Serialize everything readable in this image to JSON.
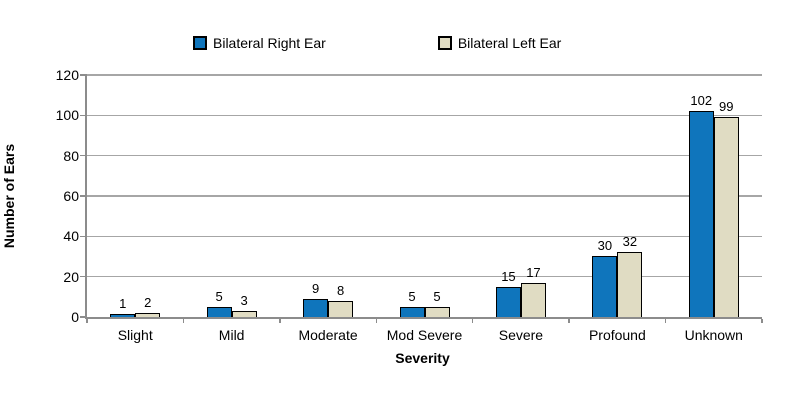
{
  "chart_data": {
    "type": "bar",
    "title": "",
    "categories": [
      "Slight",
      "Mild",
      "Moderate",
      "Mod Severe",
      "Severe",
      "Profound",
      "Unknown"
    ],
    "series": [
      {
        "name": "Bilateral Right Ear",
        "color": "#0f75bc",
        "values": [
          1,
          5,
          9,
          5,
          15,
          30,
          102
        ]
      },
      {
        "name": "Bilateral Left Ear",
        "color": "#e0dcc3",
        "values": [
          2,
          3,
          8,
          5,
          17,
          32,
          99
        ]
      }
    ],
    "xlabel": "Severity",
    "ylabel": "Number of Ears",
    "ylim": [
      0,
      120
    ],
    "yticks": [
      0,
      20,
      40,
      60,
      80,
      100,
      120
    ],
    "grid": true,
    "legend_position": "top",
    "data_labels": true
  },
  "colors": {
    "bar_border": "#000000",
    "gridline": "#a6a6a6",
    "axis": "#8c8c8c",
    "background": "#ffffff"
  }
}
